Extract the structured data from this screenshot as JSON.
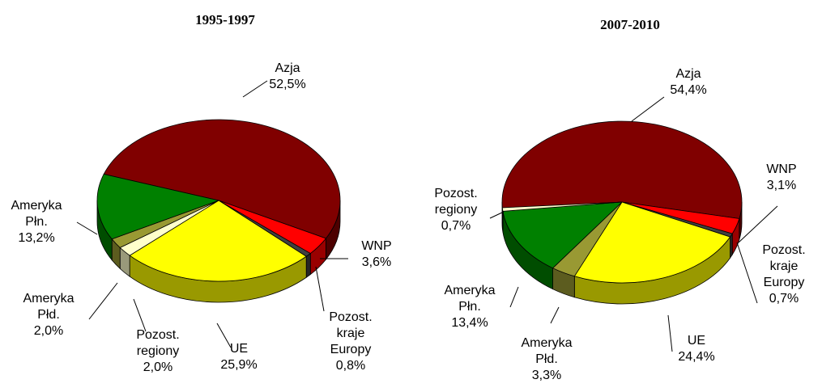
{
  "chart_data": [
    {
      "type": "pie",
      "title": "1995-1997",
      "categories": [
        "Azja",
        "WNP",
        "Pozost. kraje Europy",
        "UE",
        "Pozost. regiony",
        "Ameryka Płd.",
        "Ameryka Płn."
      ],
      "values": [
        52.5,
        3.6,
        0.8,
        25.9,
        2.0,
        2.0,
        13.2
      ],
      "value_labels": [
        "52,5%",
        "3,6%",
        "0,8%",
        "25,9%",
        "2,0%",
        "2,0%",
        "13,2%"
      ],
      "colors": [
        "#800000",
        "#ff0000",
        "#404040",
        "#ffff00",
        "#ffffcc",
        "#999933",
        "#008000"
      ]
    },
    {
      "type": "pie",
      "title": "2007-2010",
      "categories": [
        "Azja",
        "WNP",
        "Pozost. kraje Europy",
        "UE",
        "Ameryka Płd.",
        "Ameryka Płn.",
        "Pozost. regiony"
      ],
      "values": [
        54.4,
        3.1,
        0.7,
        24.4,
        3.3,
        13.4,
        0.7
      ],
      "value_labels": [
        "54,4%",
        "3,1%",
        "0,7%",
        "24,4%",
        "3,3%",
        "13,4%",
        "0,7%"
      ],
      "colors": [
        "#800000",
        "#ff0000",
        "#404040",
        "#ffff00",
        "#999933",
        "#008000",
        "#ffffcc"
      ]
    }
  ]
}
